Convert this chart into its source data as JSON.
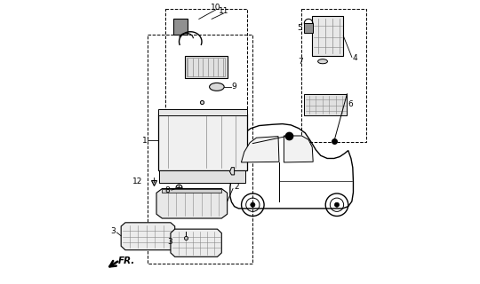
{
  "bg_color": "#ffffff",
  "line_color": "#000000",
  "gray_color": "#888888",
  "figsize": [
    5.4,
    3.2
  ],
  "dpi": 100
}
